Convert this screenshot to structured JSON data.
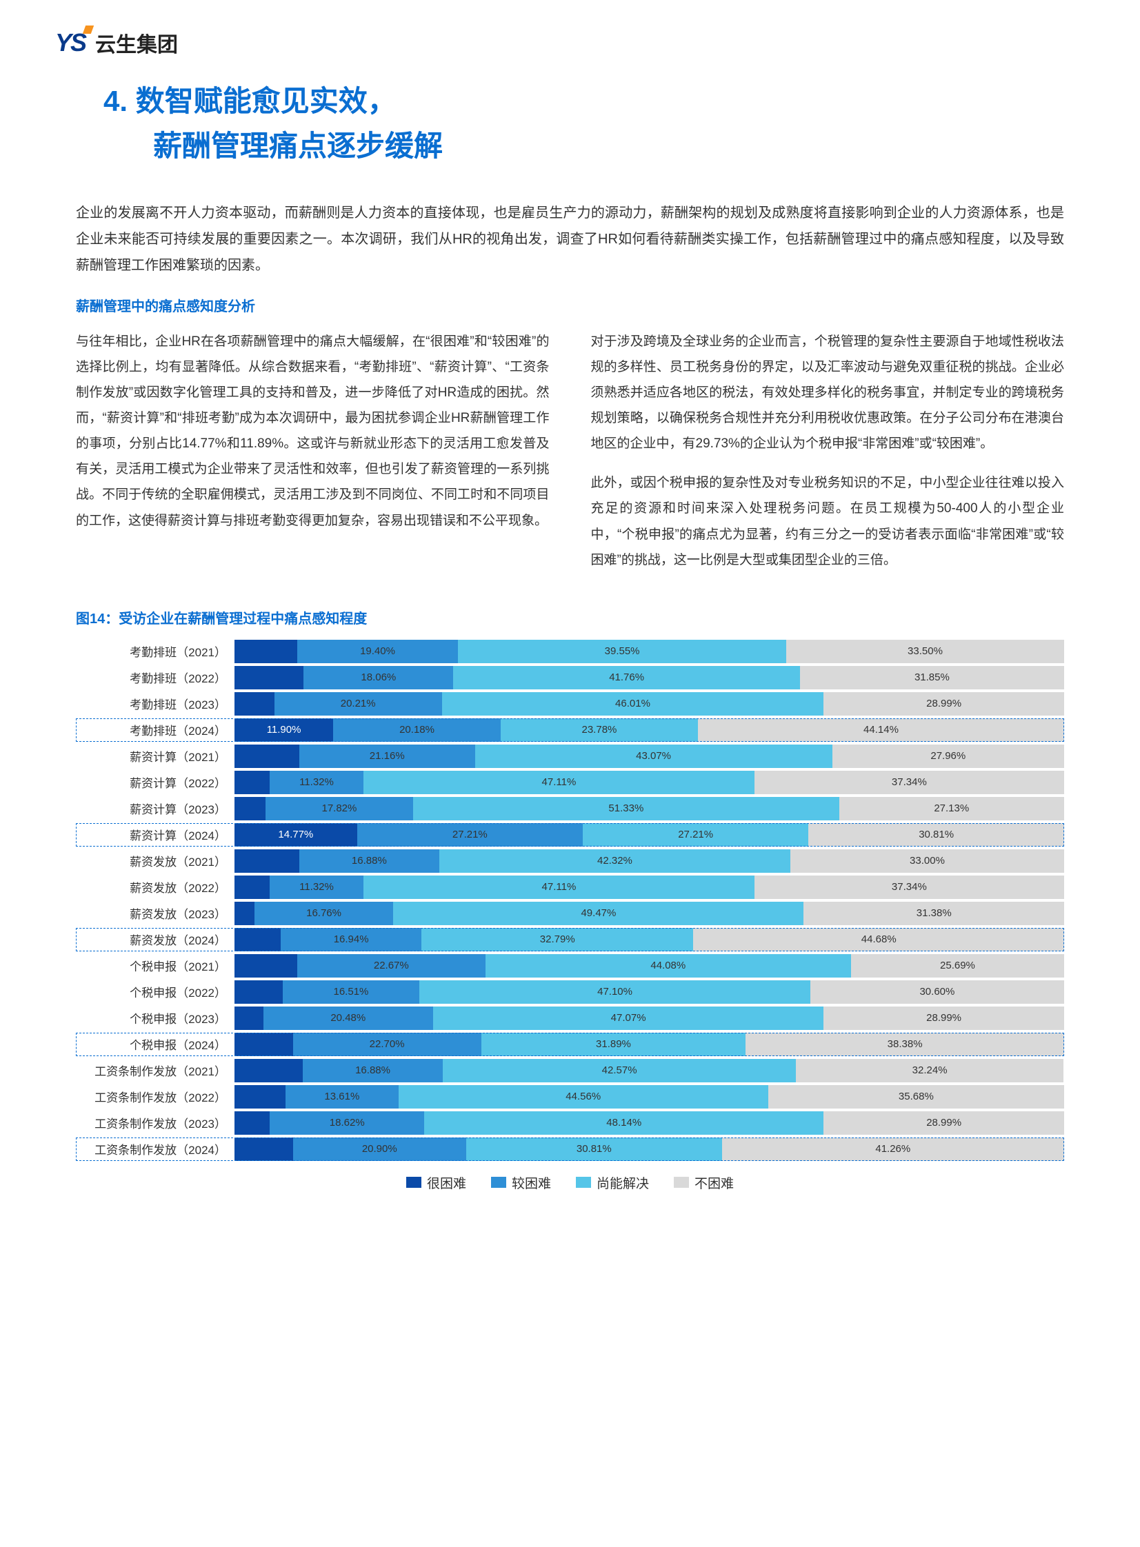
{
  "logo": {
    "mark": "YS",
    "text": "云生集团"
  },
  "title_line1": "4.   数智赋能愈见实效，",
  "title_line2": "薪酬管理痛点逐步缓解",
  "intro": "企业的发展离不开人力资本驱动，而薪酬则是人力资本的直接体现，也是雇员生产力的源动力，薪酬架构的规划及成熟度将直接影响到企业的人力资源体系，也是企业未来能否可持续发展的重要因素之一。本次调研，我们从HR的视角出发，调查了HR如何看待薪酬类实操工作，包括薪酬管理过中的痛点感知程度，以及导致薪酬管理工作困难繁琐的因素。",
  "subhead": "薪酬管理中的痛点感知度分析",
  "left_p1": "与往年相比，企业HR在各项薪酬管理中的痛点大幅缓解，在“很困难”和“较困难”的选择比例上，均有显著降低。从综合数据来看，“考勤排班”、“薪资计算”、“工资条制作发放”或因数字化管理工具的支持和普及，进一步降低了对HR造成的困扰。然而，“薪资计算”和“排班考勤”成为本次调研中，最为困扰参调企业HR薪酬管理工作的事项，分别占比14.77%和11.89%。这或许与新就业形态下的灵活用工愈发普及有关，灵活用工模式为企业带来了灵活性和效率，但也引发了薪资管理的一系列挑战。不同于传统的全职雇佣模式，灵活用工涉及到不同岗位、不同工时和不同项目的工作，这使得薪资计算与排班考勤变得更加复杂，容易出现错误和不公平现象。",
  "right_p1": "对于涉及跨境及全球业务的企业而言，个税管理的复杂性主要源自于地域性税收法规的多样性、员工税务身份的界定，以及汇率波动与避免双重征税的挑战。企业必须熟悉并适应各地区的税法，有效处理多样化的税务事宜，并制定专业的跨境税务规划策略，以确保税务合规性并充分利用税收优惠政策。在分子公司分布在港澳台地区的企业中，有29.73%的企业认为个税申报“非常困难”或“较困难”。",
  "right_p2": "此外，或因个税申报的复杂性及对专业税务知识的不足，中小型企业往往难以投入充足的资源和时间来深入处理税务问题。在员工规模为50-400人的小型企业中，“个税申报”的痛点尤为显著，约有三分之一的受访者表示面临“非常困难”或“较困难”的挑战，这一比例是大型或集团型企业的三倍。",
  "chart": {
    "title": "图14：受访企业在薪酬管理过程中痛点感知程度",
    "colors": [
      "#0a4aa8",
      "#2e8fd6",
      "#55c5e8",
      "#d9d9d9"
    ],
    "legend": [
      "很困难",
      "较困难",
      "尚能解决",
      "不困难"
    ],
    "label_hidden_threshold": 9.0,
    "rows": [
      {
        "label": "考勤排班（2021）",
        "hl": false,
        "v": [
          7.55,
          19.4,
          39.55,
          33.5
        ]
      },
      {
        "label": "考勤排班（2022）",
        "hl": false,
        "v": [
          8.33,
          18.06,
          41.76,
          31.85
        ]
      },
      {
        "label": "考勤排班（2023）",
        "hl": false,
        "v": [
          4.79,
          20.21,
          46.01,
          28.99
        ]
      },
      {
        "label": "考勤排班（2024）",
        "hl": true,
        "v": [
          11.9,
          20.18,
          23.78,
          44.14
        ]
      },
      {
        "label": "薪资计算（2021）",
        "hl": false,
        "v": [
          7.81,
          21.16,
          43.07,
          27.96
        ]
      },
      {
        "label": "薪资计算（2022）",
        "hl": false,
        "v": [
          4.23,
          11.32,
          47.11,
          37.34
        ]
      },
      {
        "label": "薪资计算（2023）",
        "hl": false,
        "v": [
          3.72,
          17.82,
          51.33,
          27.13
        ]
      },
      {
        "label": "薪资计算（2024）",
        "hl": true,
        "v": [
          14.77,
          27.21,
          27.21,
          30.81
        ]
      },
      {
        "label": "薪资发放（2021）",
        "hl": false,
        "v": [
          7.8,
          16.88,
          42.32,
          33.0
        ]
      },
      {
        "label": "薪资发放（2022）",
        "hl": false,
        "v": [
          4.23,
          11.32,
          47.11,
          37.34
        ]
      },
      {
        "label": "薪资发放（2023）",
        "hl": false,
        "v": [
          2.39,
          16.76,
          49.47,
          31.38
        ]
      },
      {
        "label": "薪资发放（2024）",
        "hl": true,
        "v": [
          5.59,
          16.94,
          32.79,
          44.68
        ]
      },
      {
        "label": "个税申报（2021）",
        "hl": false,
        "v": [
          7.56,
          22.67,
          44.08,
          25.69
        ]
      },
      {
        "label": "个税申报（2022）",
        "hl": false,
        "v": [
          5.79,
          16.51,
          47.1,
          30.6
        ]
      },
      {
        "label": "个税申报（2023）",
        "hl": false,
        "v": [
          3.46,
          20.48,
          47.07,
          28.99
        ]
      },
      {
        "label": "个税申报（2024）",
        "hl": true,
        "v": [
          7.03,
          22.7,
          31.89,
          38.38
        ]
      },
      {
        "label": "工资条制作发放（2021）",
        "hl": false,
        "v": [
          8.23,
          16.88,
          42.57,
          32.24
        ]
      },
      {
        "label": "工资条制作发放（2022）",
        "hl": false,
        "v": [
          6.15,
          13.61,
          44.56,
          35.68
        ]
      },
      {
        "label": "工资条制作发放（2023）",
        "hl": false,
        "v": [
          4.26,
          18.62,
          48.14,
          28.99
        ]
      },
      {
        "label": "工资条制作发放（2024）",
        "hl": true,
        "v": [
          7.03,
          20.9,
          30.81,
          41.26
        ]
      }
    ]
  }
}
